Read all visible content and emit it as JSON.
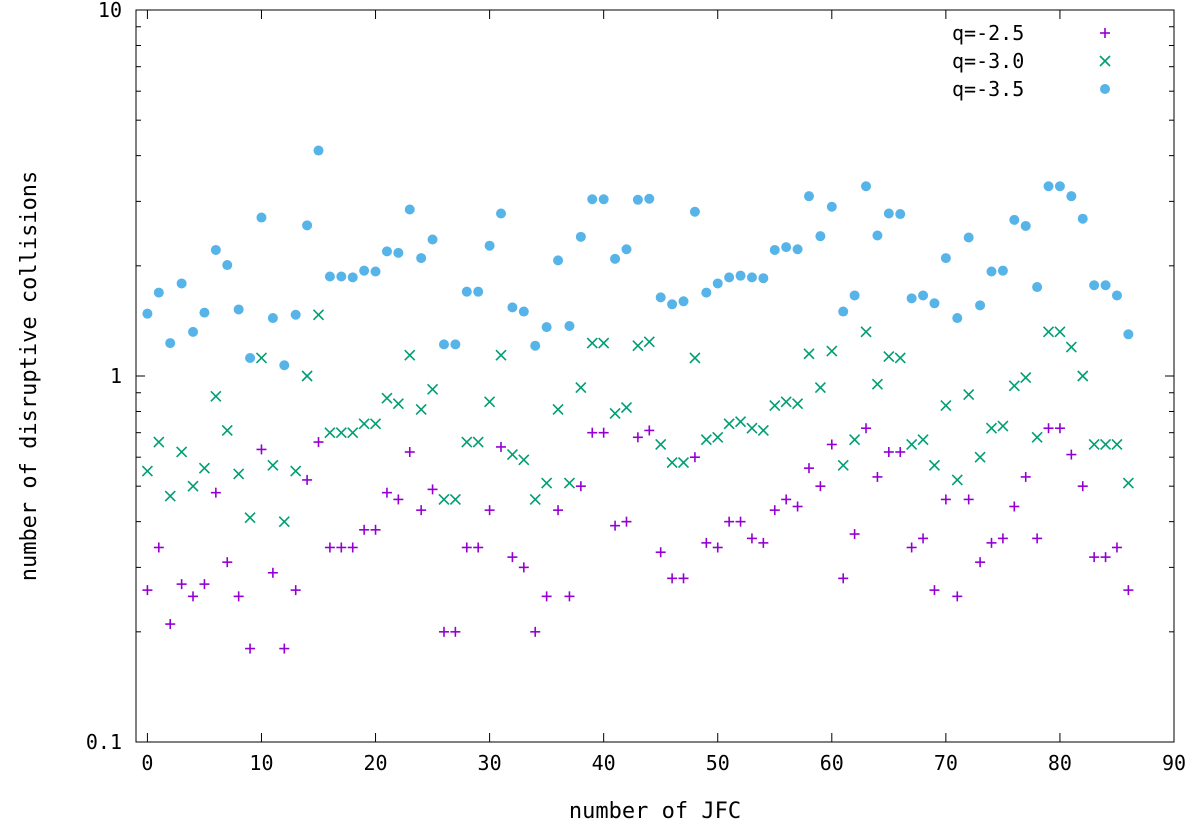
{
  "chart_data": {
    "type": "scatter",
    "title": "",
    "xlabel": "number of JFC",
    "ylabel": "number of disruptive collisions",
    "xlim": [
      -1,
      90
    ],
    "ylim": [
      0.1,
      10
    ],
    "yscale": "log",
    "xticks": [
      0,
      10,
      20,
      30,
      40,
      50,
      60,
      70,
      80,
      90
    ],
    "xtick_labels": [
      "0",
      "10",
      "20",
      "30",
      "40",
      "50",
      "60",
      "70",
      "80",
      "90"
    ],
    "yticks": [
      0.1,
      1,
      10
    ],
    "ytick_labels": [
      "0.1",
      "1",
      "10"
    ],
    "grid": false,
    "legend_position": "top-right",
    "x": [
      0,
      1,
      2,
      3,
      4,
      5,
      6,
      7,
      8,
      9,
      10,
      11,
      12,
      13,
      14,
      15,
      16,
      17,
      18,
      19,
      20,
      21,
      22,
      23,
      24,
      25,
      26,
      27,
      28,
      29,
      30,
      31,
      32,
      33,
      34,
      35,
      36,
      37,
      38,
      39,
      40,
      41,
      42,
      43,
      44,
      45,
      46,
      47,
      48,
      49,
      50,
      51,
      52,
      53,
      54,
      55,
      56,
      57,
      58,
      59,
      60,
      61,
      62,
      63,
      64,
      65,
      66,
      67,
      68,
      69,
      70,
      71,
      72,
      73,
      74,
      75,
      76,
      77,
      78,
      79,
      80,
      81,
      82,
      83,
      84,
      85,
      86
    ],
    "series": [
      {
        "name": "q=-2.5",
        "marker": "plus",
        "color": "#9400D3",
        "values": [
          0.26,
          0.34,
          0.21,
          0.27,
          0.25,
          0.27,
          0.48,
          0.31,
          0.25,
          0.18,
          0.63,
          0.29,
          0.18,
          0.26,
          0.52,
          0.66,
          0.34,
          0.34,
          0.34,
          0.38,
          0.38,
          0.48,
          0.46,
          0.62,
          0.43,
          0.49,
          0.2,
          0.2,
          0.34,
          0.34,
          0.43,
          0.64,
          0.32,
          0.3,
          0.2,
          0.25,
          0.43,
          0.25,
          0.5,
          0.7,
          0.7,
          0.39,
          0.4,
          0.68,
          0.71,
          0.33,
          0.28,
          0.28,
          0.6,
          0.35,
          0.34,
          0.4,
          0.4,
          0.36,
          0.35,
          0.43,
          0.46,
          0.44,
          0.56,
          0.5,
          0.65,
          0.28,
          0.37,
          0.72,
          0.53,
          0.62,
          0.62,
          0.34,
          0.36,
          0.26,
          0.46,
          0.25,
          0.46,
          0.31,
          0.35,
          0.36,
          0.44,
          0.53,
          0.36,
          0.72,
          0.72,
          0.61,
          0.5,
          0.32,
          0.32,
          0.34,
          0.26
        ]
      },
      {
        "name": "q=-3.0",
        "marker": "cross",
        "color": "#009E73",
        "values": [
          0.55,
          0.66,
          0.47,
          0.62,
          0.5,
          0.56,
          0.88,
          0.71,
          0.54,
          0.41,
          1.12,
          0.57,
          0.4,
          0.55,
          1.0,
          1.47,
          0.7,
          0.7,
          0.7,
          0.74,
          0.74,
          0.87,
          0.84,
          1.14,
          0.81,
          0.92,
          0.46,
          0.46,
          0.66,
          0.66,
          0.85,
          1.14,
          0.61,
          0.59,
          0.46,
          0.51,
          0.81,
          0.51,
          0.93,
          1.23,
          1.23,
          0.79,
          0.82,
          1.21,
          1.24,
          0.65,
          0.58,
          0.58,
          1.12,
          0.67,
          0.68,
          0.74,
          0.75,
          0.72,
          0.71,
          0.83,
          0.85,
          0.84,
          1.15,
          0.93,
          1.17,
          0.57,
          0.67,
          1.32,
          0.95,
          1.13,
          1.12,
          0.65,
          0.67,
          0.57,
          0.83,
          0.52,
          0.89,
          0.6,
          0.72,
          0.73,
          0.94,
          0.99,
          0.68,
          1.32,
          1.32,
          1.2,
          1.0,
          0.65,
          0.65,
          0.65,
          0.51
        ]
      },
      {
        "name": "q=-3.5",
        "marker": "circle",
        "color": "#56B4E9",
        "values": [
          1.48,
          1.69,
          1.23,
          1.79,
          1.32,
          1.49,
          2.21,
          2.01,
          1.52,
          1.12,
          2.71,
          1.44,
          1.07,
          1.47,
          2.58,
          4.13,
          1.87,
          1.87,
          1.86,
          1.94,
          1.93,
          2.19,
          2.17,
          2.85,
          2.1,
          2.36,
          1.22,
          1.22,
          1.7,
          1.7,
          2.27,
          2.78,
          1.54,
          1.5,
          1.21,
          1.36,
          2.07,
          1.37,
          2.4,
          3.04,
          3.04,
          2.09,
          2.22,
          3.03,
          3.05,
          1.64,
          1.57,
          1.6,
          2.81,
          1.69,
          1.79,
          1.86,
          1.88,
          1.86,
          1.85,
          2.21,
          2.25,
          2.22,
          3.1,
          2.41,
          2.9,
          1.5,
          1.66,
          3.3,
          2.42,
          2.78,
          2.77,
          1.63,
          1.66,
          1.58,
          2.1,
          1.44,
          2.39,
          1.56,
          1.93,
          1.94,
          2.67,
          2.57,
          1.75,
          3.3,
          3.3,
          3.1,
          2.69,
          1.77,
          1.77,
          1.66,
          1.3
        ]
      }
    ]
  }
}
